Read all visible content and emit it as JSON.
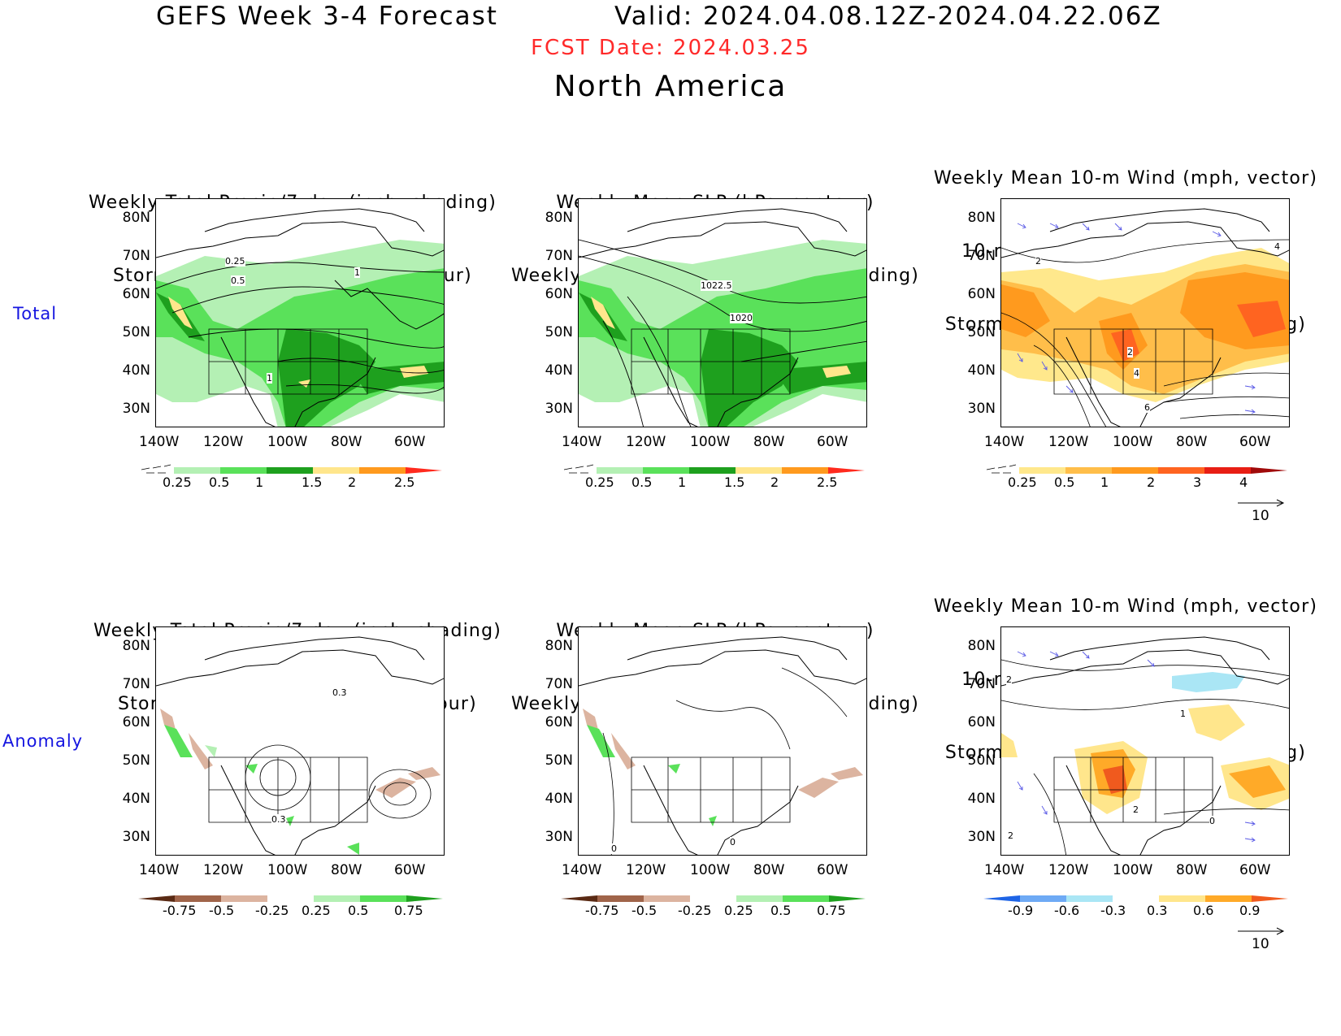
{
  "header": {
    "title": "GEFS Week 3-4 Forecast",
    "valid": "Valid: 2024.04.08.12Z-2024.04.22.06Z",
    "fcst_date": "FCST Date: 2024.03.25",
    "region": "North America"
  },
  "row_labels": [
    "Total",
    "Anomaly"
  ],
  "panel_titles": {
    "precip_track": [
      "Weekly Total Precip/7-day (inch, shading)",
      "Storm Track Density/7-day (contour)"
    ],
    "slp_precip": [
      "Weekly Mean SLP (hPa, contour)",
      "Weekly Total Precip/7-day (inch, shading)"
    ],
    "wind_track": [
      "Weekly Mean 10-m Wind (mph, vector)",
      "10-m Wind Speed (mph, contour)",
      "Storm Track Density/7-day (shading)"
    ]
  },
  "axes": {
    "lat_labels": [
      "80N",
      "70N",
      "60N",
      "50N",
      "40N",
      "30N"
    ],
    "lon_labels": [
      "140W",
      "120W",
      "100W",
      "80W",
      "60W"
    ]
  },
  "colorbars": {
    "precip_total": {
      "labels": [
        "0.25",
        "0.5",
        "1",
        "1.5",
        "2",
        "2.5"
      ],
      "colors": [
        "#b4f0b4",
        "#5ae15a",
        "#1ea01e",
        "#ffe68c",
        "#ff9a1e",
        "#ff2a1e"
      ]
    },
    "track_total": {
      "labels": [
        "0.25",
        "0.5",
        "1",
        "2",
        "3",
        "4"
      ],
      "colors": [
        "#ffe88c",
        "#ffbe4a",
        "#ff9a1e",
        "#ff6420",
        "#e81e14",
        "#a00a0a"
      ]
    },
    "precip_anom": {
      "labels": [
        "-0.75",
        "-0.5",
        "-0.25",
        "0.25",
        "0.5",
        "0.75"
      ],
      "neg_colors": [
        "#5a2a14",
        "#a0644a",
        "#dcb4a0"
      ],
      "pos_colors": [
        "#b4f0b4",
        "#5ae15a",
        "#1ea01e"
      ]
    },
    "track_anom": {
      "labels": [
        "-0.9",
        "-0.6",
        "-0.3",
        "0.3",
        "0.6",
        "0.9"
      ],
      "neg_colors": [
        "#1e64e6",
        "#6eaaf5",
        "#aae6f5"
      ],
      "pos_colors": [
        "#ffe68c",
        "#ffaa28",
        "#f05a1e"
      ]
    }
  },
  "contour_labels": {
    "total_track": [
      "0.25",
      "0.5",
      "1",
      "1"
    ],
    "total_slp": [
      "1022.5",
      "1020"
    ],
    "total_wind": [
      "2",
      "2",
      "4",
      "4",
      "6"
    ],
    "anom_track": [
      "0.3",
      "0.3"
    ],
    "anom_slp": [
      "0",
      "0"
    ],
    "anom_wind": [
      "2",
      "1",
      "2",
      "0",
      "2"
    ]
  },
  "vector_reference": "10",
  "colors": {
    "title": "#000000",
    "fcst_date": "#ff2a2a",
    "row_label": "#1515e0"
  }
}
